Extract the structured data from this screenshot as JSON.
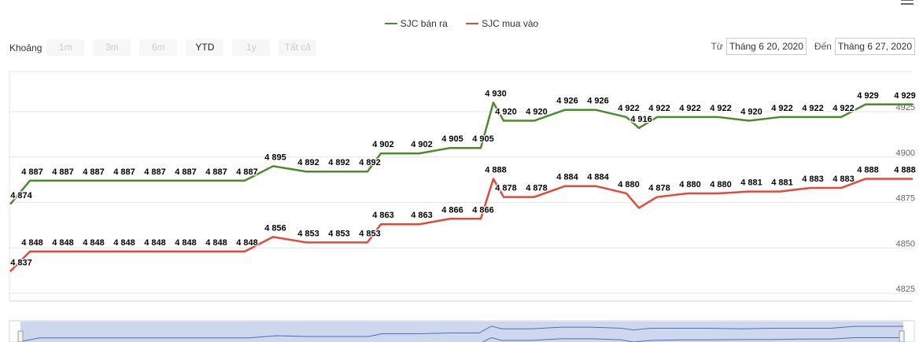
{
  "legend": [
    {
      "name": "SJC bán ra",
      "color": "#4b8b2a"
    },
    {
      "name": "SJC mua vào",
      "color": "#e04a36"
    }
  ],
  "range_selector": {
    "label": "Khoảng",
    "buttons": [
      "1m",
      "3m",
      "6m",
      "YTD",
      "1y",
      "Tất cả"
    ],
    "active": "YTD"
  },
  "date_range": {
    "from_label": "Từ",
    "from": "Tháng 6 20, 2020",
    "to_label": "Đến",
    "to": "Tháng 6 27, 2020"
  },
  "menu_icon": "hamburger-menu-icon",
  "navigator": {
    "fill": "#cdd8ef",
    "line": "#4a6fb5"
  },
  "chart_data": {
    "type": "line",
    "title": "",
    "ylim": [
      4825,
      4945
    ],
    "y_ticks": [
      4825,
      4850,
      4875,
      4900,
      4925
    ],
    "grid": true,
    "legend_position": "top",
    "series": [
      {
        "name": "SJC bán ra",
        "color": "#4b8b2a",
        "values": [
          4874,
          4887,
          4887,
          4887,
          4887,
          4887,
          4887,
          4887,
          4887,
          4895,
          4892,
          4892,
          4892,
          4902,
          4902,
          4905,
          4905,
          4930,
          4920,
          4920,
          4926,
          4926,
          4922,
          4916,
          4922,
          4922,
          4922,
          4920,
          4922,
          4922,
          4922,
          4929,
          4929
        ],
        "labels": [
          "4 874",
          "4 887",
          "4 887",
          "4 887",
          "4 887",
          "4 887",
          "4 887",
          "4 887",
          "4 887",
          "4 895",
          "4 892",
          "4 892",
          "4 892",
          "4 902",
          "4 902",
          "4 905",
          "4 905",
          "4 930",
          "4 920",
          "4 920",
          "4 926",
          "4 926",
          "4 922",
          "4 916",
          "4 922",
          "4 922",
          "4 922",
          "4 920",
          "4 922",
          "4 922",
          "4 922",
          "4 929",
          "4 929"
        ]
      },
      {
        "name": "SJC mua vào",
        "color": "#e04a36",
        "values": [
          4837,
          4848,
          4848,
          4848,
          4848,
          4848,
          4848,
          4848,
          4848,
          4856,
          4853,
          4853,
          4853,
          4863,
          4863,
          4866,
          4866,
          4888,
          4878,
          4878,
          4884,
          4884,
          4880,
          4872,
          4878,
          4880,
          4880,
          4881,
          4881,
          4883,
          4883,
          4888,
          4888
        ],
        "labels": [
          "4 837",
          "4 848",
          "4 848",
          "4 848",
          "4 848",
          "4 848",
          "4 848",
          "4 848",
          "4 848",
          "4 856",
          "4 853",
          "4 853",
          "4 853",
          "4 863",
          "4 863",
          "4 866",
          "4 866",
          "4 888",
          "4 878",
          "4 878",
          "4 884",
          "4 884",
          "4 880",
          null,
          "4 878",
          "4 880",
          "4 880",
          "4 881",
          "4 881",
          "4 883",
          "4 883",
          "4 888",
          "4 888"
        ]
      }
    ]
  }
}
